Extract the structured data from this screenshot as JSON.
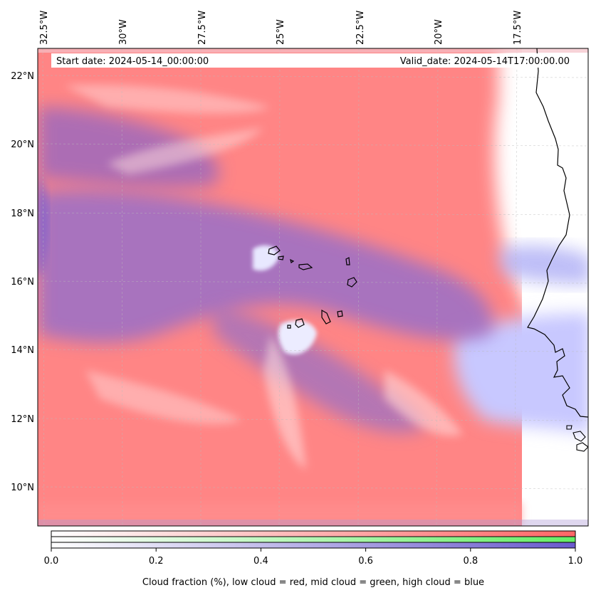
{
  "annotations": {
    "start_date": "Start date: 2024-05-14_00:00:00",
    "valid_date": "Valid_date: 2024-05-14T17:00:00.00"
  },
  "longitude_labels": [
    "32.5°W",
    "30°W",
    "27.5°W",
    "25°W",
    "22.5°W",
    "20°W",
    "17.5°W"
  ],
  "latitude_labels": [
    "22°N",
    "20°N",
    "18°N",
    "16°N",
    "14°N",
    "12°N",
    "10°N"
  ],
  "colorbar": {
    "ticks": [
      "0.0",
      "0.2",
      "0.4",
      "0.6",
      "0.8",
      "1.0"
    ],
    "tick_values": [
      0.0,
      0.2,
      0.4,
      0.6,
      0.8,
      1.0
    ],
    "range": [
      0,
      1
    ],
    "bands": [
      {
        "layer": "low",
        "color": "#ff6666"
      },
      {
        "layer": "mid",
        "color": "#66ee66"
      },
      {
        "layer": "high",
        "color": "#6a5acd"
      }
    ],
    "label": "Cloud fraction (%), low cloud = red, mid cloud = green, high cloud = blue"
  },
  "colors": {
    "low_cloud": "#ff8080",
    "mixed_cloud": "#9a6fc0",
    "high_cloud": "#b8b8ff",
    "clear": "#ffffff",
    "coastline": "#000000"
  }
}
